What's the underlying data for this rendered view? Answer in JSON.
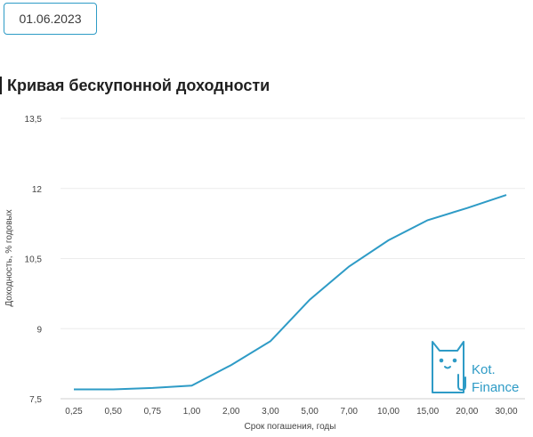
{
  "date_badge": "01.06.2023",
  "title": "Кривая бескупонной доходности",
  "logo": {
    "name": "Kot.",
    "sub": "Finance",
    "color": "#2e9bc6"
  },
  "chart_data": {
    "type": "line",
    "title": "Кривая бескупонной доходности",
    "xlabel": "Срок погашения, годы",
    "ylabel": "Доходность, % годовых",
    "categories": [
      "0,25",
      "0,50",
      "0,75",
      "1,00",
      "2,00",
      "3,00",
      "5,00",
      "7,00",
      "10,00",
      "15,00",
      "20,00",
      "30,00"
    ],
    "y_ticks": [
      "7,5",
      "9",
      "10,5",
      "12",
      "13,5"
    ],
    "y_tick_values": [
      7.5,
      9,
      10.5,
      12,
      13.5
    ],
    "ylim": [
      7.5,
      13.5
    ],
    "grid": true,
    "line_color": "#2e9bc6",
    "series": [
      {
        "values": [
          7.7,
          7.7,
          7.73,
          7.78,
          8.22,
          8.73,
          9.62,
          10.33,
          10.89,
          11.32,
          11.58,
          11.86
        ]
      }
    ]
  }
}
